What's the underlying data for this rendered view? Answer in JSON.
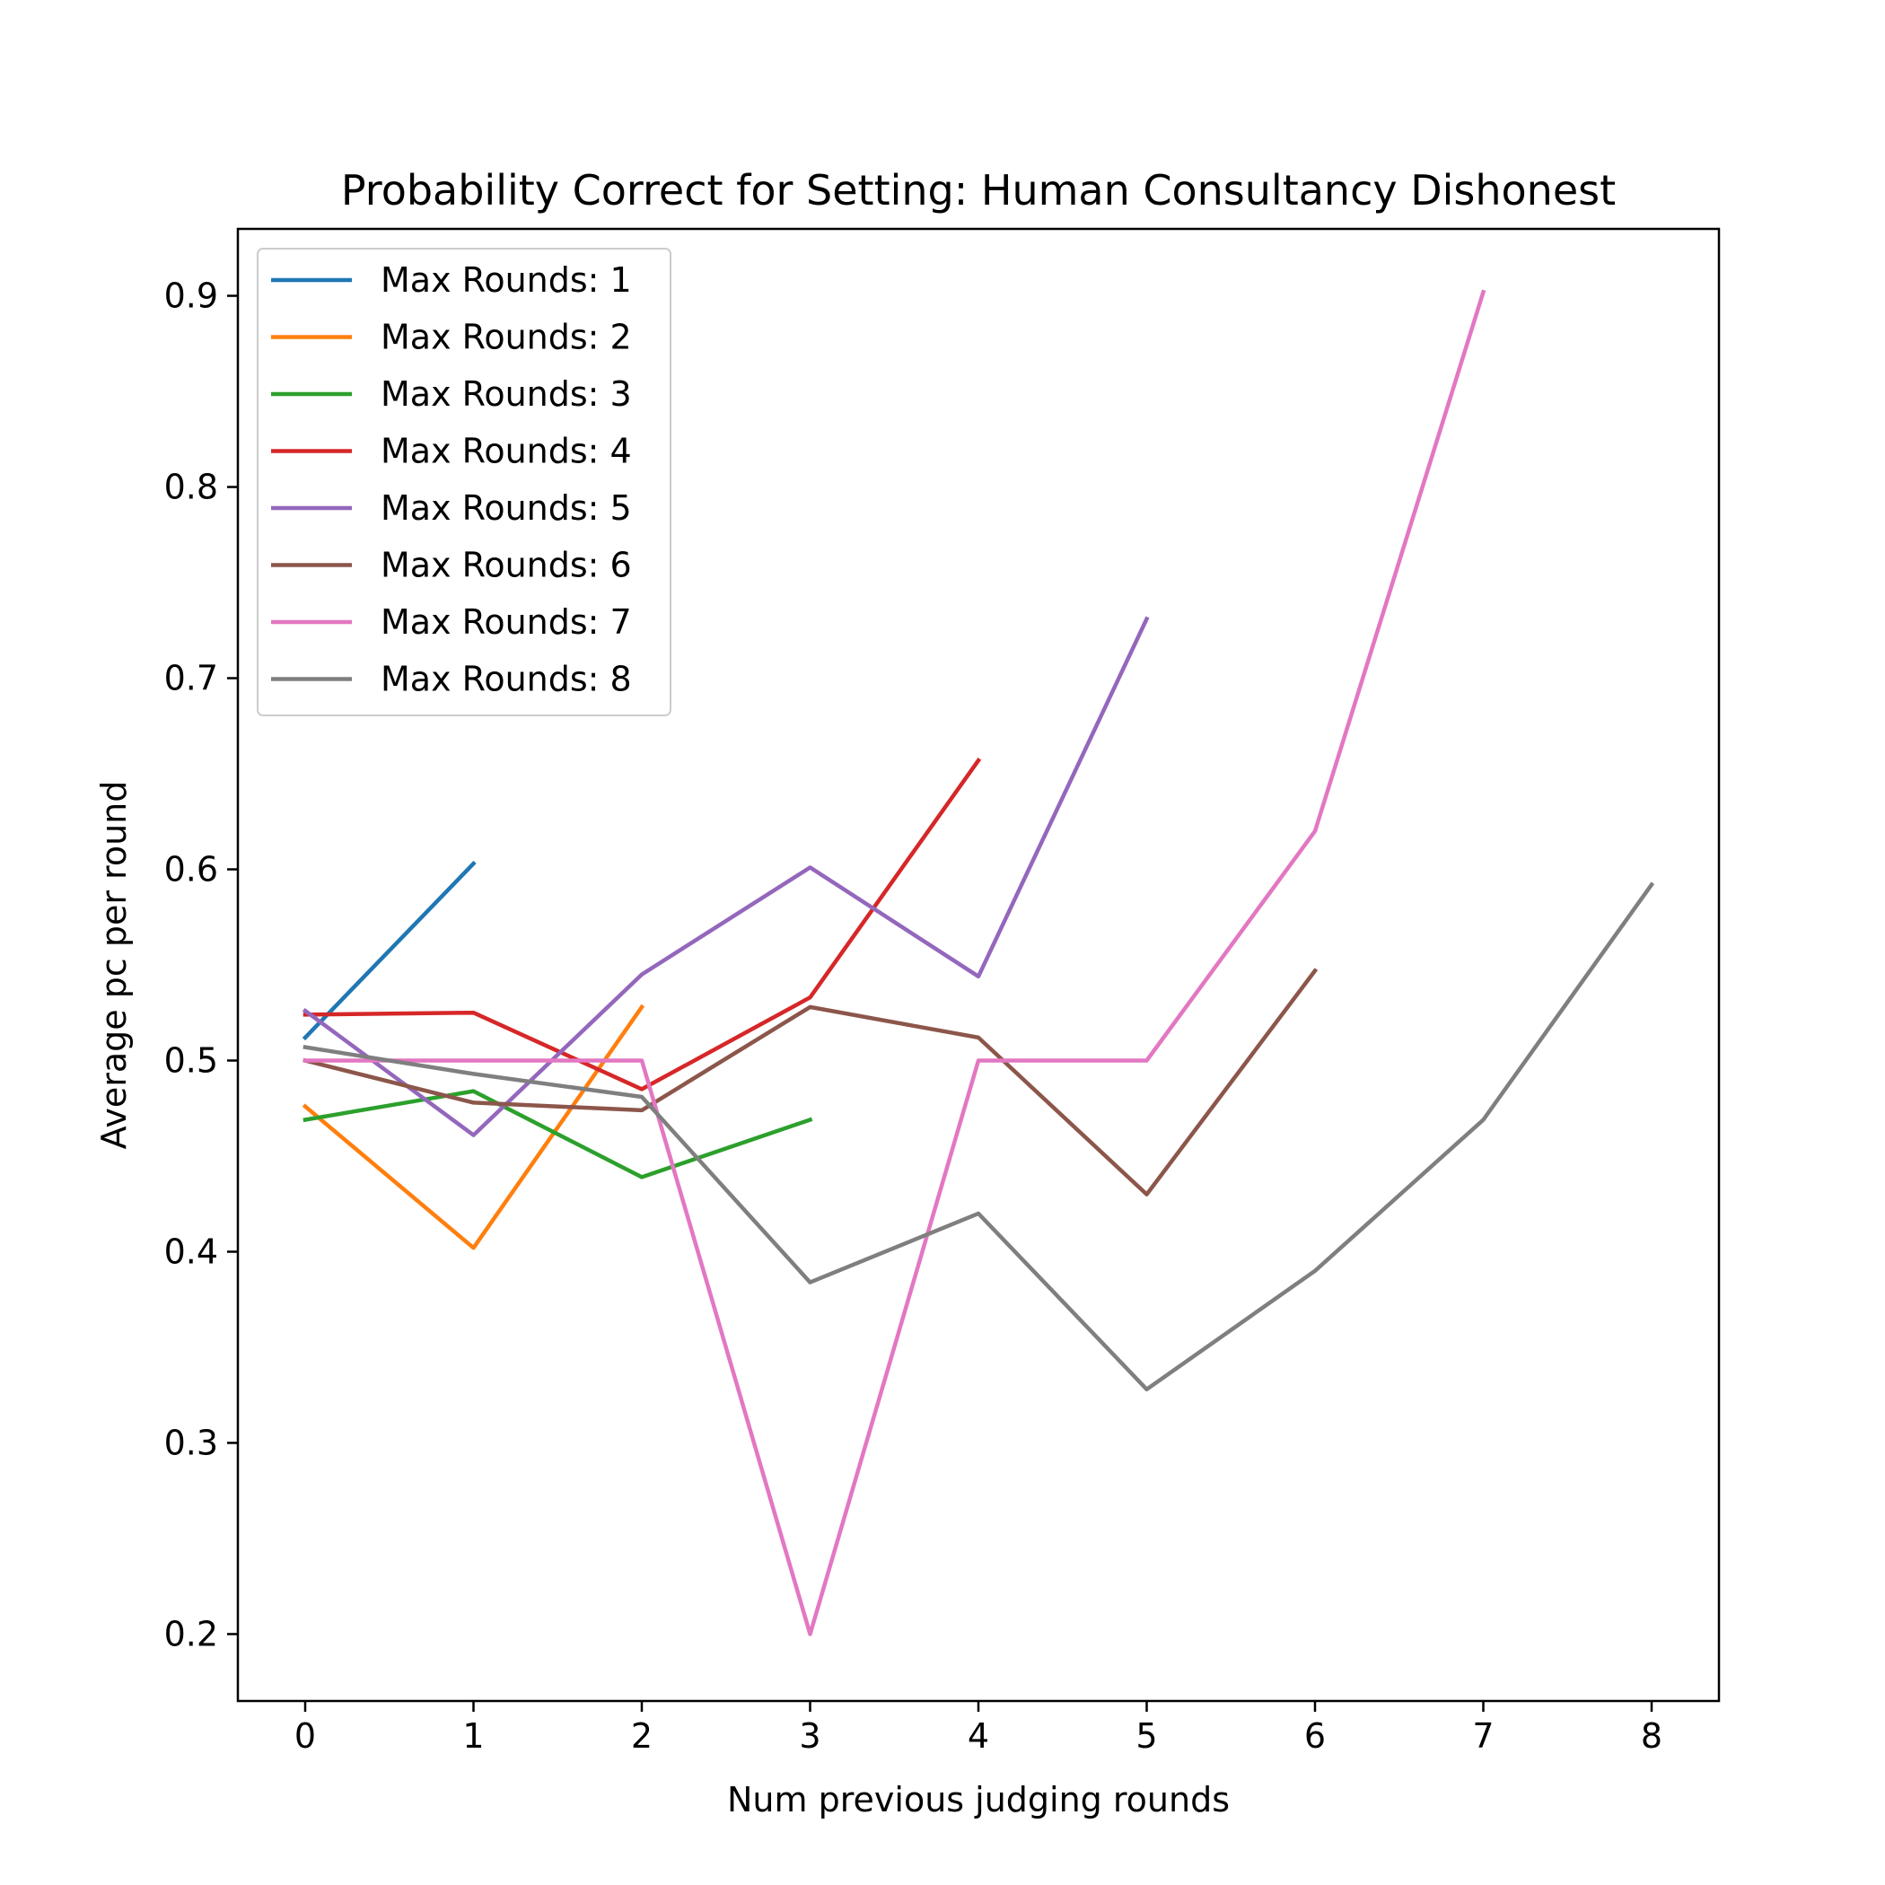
{
  "chart_data": {
    "type": "line",
    "title": "Probability Correct for Setting: Human Consultancy Dishonest",
    "xlabel": "Num previous judging rounds",
    "ylabel": "Average pc per round",
    "xlim": [
      -0.4,
      8.4
    ],
    "ylim": [
      0.165,
      0.935
    ],
    "xticks": [
      "0",
      "1",
      "2",
      "3",
      "4",
      "5",
      "6",
      "7",
      "8"
    ],
    "yticks": [
      "0.2",
      "0.3",
      "0.4",
      "0.5",
      "0.6",
      "0.7",
      "0.8",
      "0.9"
    ],
    "grid": false,
    "legend_position": "top-left",
    "series": [
      {
        "name": "Max Rounds: 1",
        "color": "#1f77b4",
        "x": [
          0,
          1
        ],
        "values": [
          0.512,
          0.603
        ]
      },
      {
        "name": "Max Rounds: 2",
        "color": "#ff7f0e",
        "x": [
          0,
          1,
          2
        ],
        "values": [
          0.476,
          0.402,
          0.528
        ]
      },
      {
        "name": "Max Rounds: 3",
        "color": "#2ca02c",
        "x": [
          0,
          1,
          2,
          3
        ],
        "values": [
          0.469,
          0.484,
          0.439,
          0.469
        ]
      },
      {
        "name": "Max Rounds: 4",
        "color": "#d62728",
        "x": [
          0,
          1,
          2,
          3,
          4
        ],
        "values": [
          0.524,
          0.525,
          0.485,
          0.533,
          0.657
        ]
      },
      {
        "name": "Max Rounds: 5",
        "color": "#9467bd",
        "x": [
          0,
          1,
          2,
          3,
          4,
          5
        ],
        "values": [
          0.526,
          0.461,
          0.545,
          0.601,
          0.544,
          0.731
        ]
      },
      {
        "name": "Max Rounds: 6",
        "color": "#8c564b",
        "x": [
          0,
          1,
          2,
          3,
          4,
          5,
          6
        ],
        "values": [
          0.5,
          0.478,
          0.474,
          0.528,
          0.512,
          0.43,
          0.547
        ]
      },
      {
        "name": "Max Rounds: 7",
        "color": "#e377c2",
        "x": [
          0,
          1,
          2,
          3,
          4,
          5,
          6,
          7
        ],
        "values": [
          0.5,
          0.5,
          0.5,
          0.2,
          0.5,
          0.5,
          0.62,
          0.902
        ]
      },
      {
        "name": "Max Rounds: 8",
        "color": "#7f7f7f",
        "x": [
          0,
          1,
          2,
          3,
          4,
          5,
          6,
          7,
          8
        ],
        "values": [
          0.507,
          0.493,
          0.481,
          0.384,
          0.42,
          0.328,
          0.39,
          0.469,
          0.592
        ]
      }
    ]
  }
}
